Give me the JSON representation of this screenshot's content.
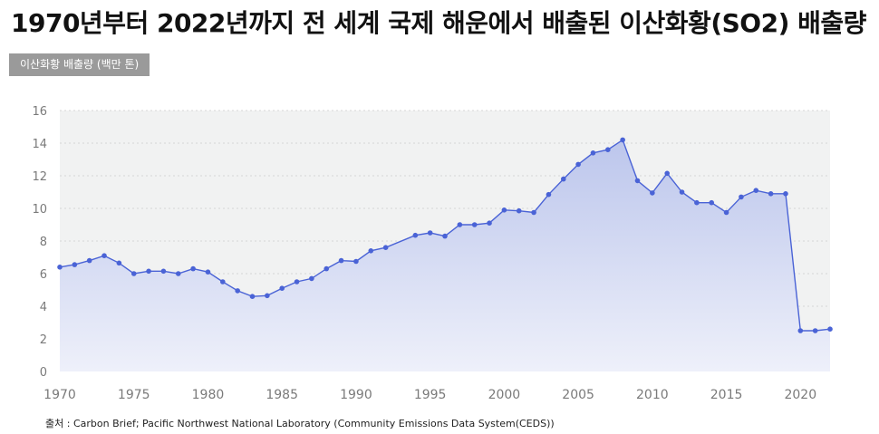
{
  "chart_data": {
    "type": "area",
    "title": "1970년부터 2022년까지 전 세계 국제 해운에서 배출된 이산화황(SO2) 배출량",
    "ylabel": "이산화황 배출량 (백만 톤)",
    "xlabel": "",
    "source": "출처 : Carbon Brief; Pacific Northwest National Laboratory (Community Emissions Data System(CEDS))",
    "xlim": [
      1970,
      2022
    ],
    "ylim": [
      0,
      16
    ],
    "xticks": [
      1970,
      1975,
      1980,
      1985,
      1990,
      1995,
      2000,
      2005,
      2010,
      2015,
      2020
    ],
    "yticks": [
      0,
      2,
      4,
      6,
      8,
      10,
      12,
      14,
      16
    ],
    "grid": true,
    "series": [
      {
        "x": [
          1970,
          1971,
          1972,
          1973,
          1974,
          1975,
          1976,
          1977,
          1978,
          1979,
          1980,
          1981,
          1982,
          1983,
          1984,
          1985,
          1986,
          1987,
          1988,
          1989,
          1990,
          1991,
          1992,
          1994,
          1995,
          1996,
          1997,
          1998,
          1999,
          2000,
          2001,
          2002,
          2003,
          2004,
          2005,
          2006,
          2007,
          2008,
          2009,
          2010,
          2011,
          2012,
          2013,
          2014,
          2015,
          2016,
          2017,
          2018,
          2019,
          2020,
          2021,
          2022
        ],
        "values": [
          6.4,
          6.55,
          6.8,
          7.1,
          6.65,
          6.0,
          6.15,
          6.15,
          6.0,
          6.3,
          6.1,
          5.5,
          4.95,
          4.6,
          4.65,
          5.1,
          5.5,
          5.7,
          6.3,
          6.8,
          6.75,
          7.4,
          7.6,
          8.35,
          8.5,
          8.3,
          9.0,
          9.0,
          9.1,
          9.9,
          9.85,
          9.75,
          10.85,
          11.8,
          12.7,
          13.4,
          13.6,
          14.2,
          11.7,
          10.95,
          12.15,
          11.0,
          10.35,
          10.35,
          9.75,
          10.7,
          11.1,
          10.9,
          10.9,
          2.5,
          2.5,
          2.6
        ]
      }
    ],
    "colors": {
      "line": "#4a63d6",
      "point": "#4a63d6",
      "fill_top": "#bcc6ec",
      "fill_bottom": "#eef0fa",
      "plot_bg": "#f1f2f2",
      "grid": "#d5d5d5"
    }
  }
}
